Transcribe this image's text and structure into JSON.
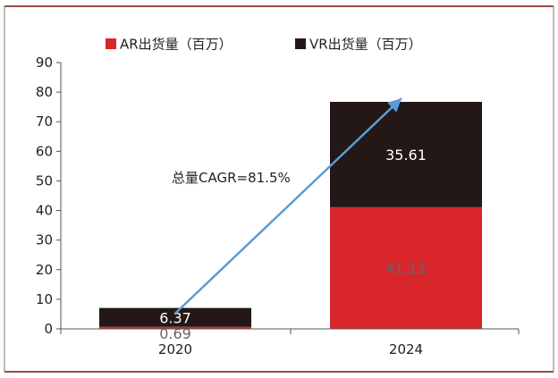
{
  "colors": {
    "ar": "#d9262b",
    "vr": "#231815",
    "arrow": "#5b9bd5",
    "frame_accent": "#c0201f"
  },
  "chart_data": {
    "type": "bar",
    "stacked": true,
    "categories": [
      "2020",
      "2024"
    ],
    "series": [
      {
        "name": "AR出货量（百万）",
        "values": [
          0.69,
          41.11
        ],
        "label_color": "#666666",
        "color": "#d9262b"
      },
      {
        "name": "VR出货量（百万）",
        "values": [
          6.37,
          35.61
        ],
        "label_color": "#ffffff",
        "color": "#231815"
      }
    ],
    "ylim": [
      0,
      90
    ],
    "yticks": [
      0,
      10,
      20,
      30,
      40,
      50,
      60,
      70,
      80,
      90
    ],
    "title": "",
    "xlabel": "",
    "ylabel": "",
    "grid": false,
    "legend_position": "top",
    "annotation": {
      "text": "总量CAGR=81.5%"
    }
  }
}
